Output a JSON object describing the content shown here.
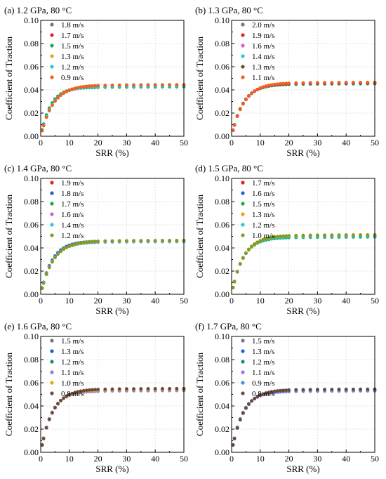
{
  "chart_data": [
    {
      "type": "scatter",
      "title": "(a) 1.2 GPa, 80 °C",
      "xlabel": "SRR (%)",
      "ylabel": "Coefficient of Traction",
      "xlim": [
        0,
        50
      ],
      "ylim": [
        0,
        0.1
      ],
      "xticks": [
        "0",
        "10",
        "20",
        "30",
        "40",
        "50"
      ],
      "yticks": [
        "0.00",
        "0.02",
        "0.04",
        "0.06",
        "0.08",
        "0.10"
      ],
      "grid": true,
      "legend": "top-left",
      "series": [
        {
          "name": "1.8 m/s",
          "color": "#777777",
          "plateau": 0.0432,
          "k": 4.1
        },
        {
          "name": "1.7 m/s",
          "color": "#e8202a",
          "plateau": 0.0436,
          "k": 4.1
        },
        {
          "name": "1.5 m/s",
          "color": "#1fa55a",
          "plateau": 0.0422,
          "k": 3.5
        },
        {
          "name": "1.3 m/s",
          "color": "#f0a010",
          "plateau": 0.0438,
          "k": 4.2
        },
        {
          "name": "1.2 m/s",
          "color": "#29c8d8",
          "plateau": 0.043,
          "k": 4.0
        },
        {
          "name": "0.9 m/s",
          "color": "#f06020",
          "plateau": 0.044,
          "k": 4.3
        }
      ]
    },
    {
      "type": "scatter",
      "title": "(b) 1.3 GPa, 80 °C",
      "xlabel": "SRR (%)",
      "ylabel": "Coefficient of Traction",
      "xlim": [
        0,
        50
      ],
      "ylim": [
        0,
        0.1
      ],
      "xticks": [
        "0",
        "10",
        "20",
        "30",
        "40",
        "50"
      ],
      "yticks": [
        "0.00",
        "0.02",
        "0.04",
        "0.06",
        "0.08",
        "0.10"
      ],
      "grid": true,
      "legend": "top-left",
      "series": [
        {
          "name": "2.0 m/s",
          "color": "#777777",
          "plateau": 0.0455,
          "k": 4.2
        },
        {
          "name": "1.9 m/s",
          "color": "#e8202a",
          "plateau": 0.0458,
          "k": 4.2
        },
        {
          "name": "1.6 m/s",
          "color": "#d060d8",
          "plateau": 0.045,
          "k": 4.0
        },
        {
          "name": "1.4 m/s",
          "color": "#29c8d8",
          "plateau": 0.0448,
          "k": 4.0
        },
        {
          "name": "1.3 m/s",
          "color": "#7a4828",
          "plateau": 0.0452,
          "k": 4.1
        },
        {
          "name": "1.1 m/s",
          "color": "#f06020",
          "plateau": 0.046,
          "k": 4.3
        }
      ]
    },
    {
      "type": "scatter",
      "title": "(c) 1.4 GPa, 80 °C",
      "xlabel": "SRR (%)",
      "ylabel": "Coefficient of Traction",
      "xlim": [
        0,
        50
      ],
      "ylim": [
        0,
        0.1
      ],
      "xticks": [
        "0",
        "10",
        "20",
        "30",
        "40",
        "50"
      ],
      "yticks": [
        "0.00",
        "0.02",
        "0.04",
        "0.06",
        "0.08",
        "0.10"
      ],
      "grid": true,
      "legend": "top-left",
      "series": [
        {
          "name": "1.9 m/s",
          "color": "#e8202a",
          "plateau": 0.0455,
          "k": 4.0
        },
        {
          "name": "1.8 m/s",
          "color": "#2a5ad8",
          "plateau": 0.0458,
          "k": 3.9
        },
        {
          "name": "1.7 m/s",
          "color": "#1fa55a",
          "plateau": 0.0452,
          "k": 4.0
        },
        {
          "name": "1.6 m/s",
          "color": "#d060d8",
          "plateau": 0.045,
          "k": 4.0
        },
        {
          "name": "1.4 m/s",
          "color": "#29c8d8",
          "plateau": 0.0453,
          "k": 4.1
        },
        {
          "name": "1.2 m/s",
          "color": "#8a9a18",
          "plateau": 0.046,
          "k": 4.3
        }
      ]
    },
    {
      "type": "scatter",
      "title": "(d) 1.5 GPa, 80 °C",
      "xlabel": "SRR (%)",
      "ylabel": "Coefficient of Traction",
      "xlim": [
        0,
        50
      ],
      "ylim": [
        0,
        0.1
      ],
      "xticks": [
        "0",
        "10",
        "20",
        "30",
        "40",
        "50"
      ],
      "yticks": [
        "0.00",
        "0.02",
        "0.04",
        "0.06",
        "0.08",
        "0.10"
      ],
      "grid": true,
      "legend": "top-left",
      "series": [
        {
          "name": "1.7 m/s",
          "color": "#e8202a",
          "plateau": 0.05,
          "k": 4.0
        },
        {
          "name": "1.6 m/s",
          "color": "#2a5ad8",
          "plateau": 0.0495,
          "k": 4.0
        },
        {
          "name": "1.5 m/s",
          "color": "#1fa55a",
          "plateau": 0.049,
          "k": 3.9
        },
        {
          "name": "1.3 m/s",
          "color": "#f0a010",
          "plateau": 0.0505,
          "k": 4.1
        },
        {
          "name": "1.2 m/s",
          "color": "#29c8d8",
          "plateau": 0.0498,
          "k": 4.0
        },
        {
          "name": "1.0 m/s",
          "color": "#8a9a18",
          "plateau": 0.0508,
          "k": 4.2
        }
      ]
    },
    {
      "type": "scatter",
      "title": "(e) 1.6 GPa, 80 °C",
      "xlabel": "SRR (%)",
      "ylabel": "Coefficient of Traction",
      "xlim": [
        0,
        50
      ],
      "ylim": [
        0,
        0.1
      ],
      "xticks": [
        "0",
        "10",
        "20",
        "30",
        "40",
        "50"
      ],
      "yticks": [
        "0.00",
        "0.02",
        "0.04",
        "0.06",
        "0.08",
        "0.10"
      ],
      "grid": true,
      "legend": "top-left",
      "series": [
        {
          "name": "1.5 m/s",
          "color": "#777777",
          "plateau": 0.054,
          "k": 4.0
        },
        {
          "name": "1.3 m/s",
          "color": "#2a5ad8",
          "plateau": 0.053,
          "k": 3.8
        },
        {
          "name": "1.2 m/s",
          "color": "#1f8a6a",
          "plateau": 0.0535,
          "k": 3.9
        },
        {
          "name": "1.1 m/s",
          "color": "#9a7ad8",
          "plateau": 0.0528,
          "k": 3.8
        },
        {
          "name": "1.0 m/s",
          "color": "#d8b010",
          "plateau": 0.0538,
          "k": 4.0
        },
        {
          "name": "0.8 m/s",
          "color": "#6a4a38",
          "plateau": 0.0545,
          "k": 4.1
        }
      ]
    },
    {
      "type": "scatter",
      "title": "(f) 1.7 GPa, 80 °C",
      "xlabel": "SRR (%)",
      "ylabel": "Coefficient of Traction",
      "xlim": [
        0,
        50
      ],
      "ylim": [
        0,
        0.1
      ],
      "xticks": [
        "0",
        "10",
        "20",
        "30",
        "40",
        "50"
      ],
      "yticks": [
        "0.00",
        "0.02",
        "0.04",
        "0.06",
        "0.08",
        "0.10"
      ],
      "grid": true,
      "legend": "top-left",
      "series": [
        {
          "name": "1.5 m/s",
          "color": "#777777",
          "plateau": 0.0535,
          "k": 4.0
        },
        {
          "name": "1.3 m/s",
          "color": "#2a5ad8",
          "plateau": 0.0528,
          "k": 3.8
        },
        {
          "name": "1.2 m/s",
          "color": "#1f8a6a",
          "plateau": 0.053,
          "k": 3.9
        },
        {
          "name": "1.1 m/s",
          "color": "#9a7ad8",
          "plateau": 0.0525,
          "k": 3.8
        },
        {
          "name": "0.9 m/s",
          "color": "#4a90d8",
          "plateau": 0.0532,
          "k": 3.9
        },
        {
          "name": "0.8 m/s",
          "color": "#6a4a38",
          "plateau": 0.054,
          "k": 4.1
        }
      ]
    }
  ]
}
